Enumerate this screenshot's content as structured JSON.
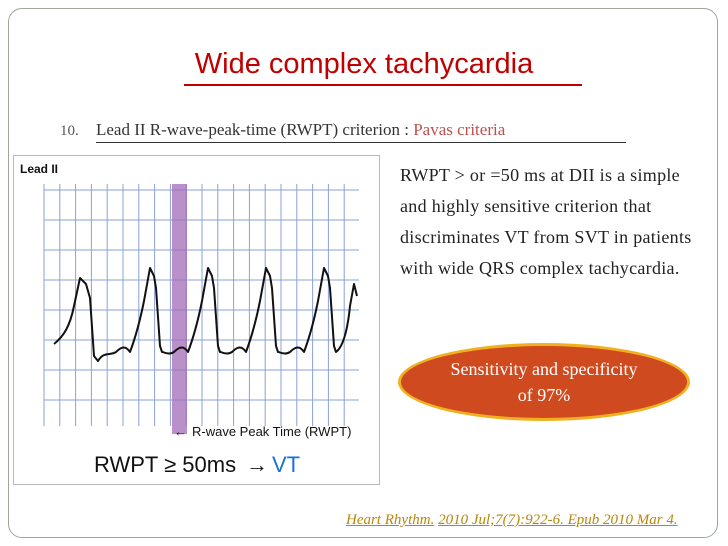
{
  "slide": {
    "title": "Wide complex tachycardia"
  },
  "bullet": {
    "number": "10.",
    "text": "Lead II R-wave-peak-time (RWPT) criterion : ",
    "highlight": "Pavas criteria"
  },
  "ecg_figure": {
    "lead_label": "Lead II",
    "caption": "R-wave Peak Time (RWPT)",
    "criterion": "RWPT ≥ 50ms",
    "arrow": "→",
    "result": "VT",
    "colors": {
      "grid": "#8aa0d8",
      "band": "#a26bb8",
      "trace": "#111111",
      "result": "#1a6fd8"
    }
  },
  "description": "RWPT > or =50 ms at DII is a simple and highly sensitive criterion that discriminates VT from SVT in patients with wide QRS complex tachycardia.",
  "callout": {
    "text": "Sensitivity and specificity of 97%",
    "colors": {
      "fill": "#cf4a1f",
      "border": "#f0b020"
    }
  },
  "citation": {
    "journal": "Heart Rhythm.",
    "details": "2010 Jul;7(7):922-6. Epub 2010 Mar 4."
  }
}
